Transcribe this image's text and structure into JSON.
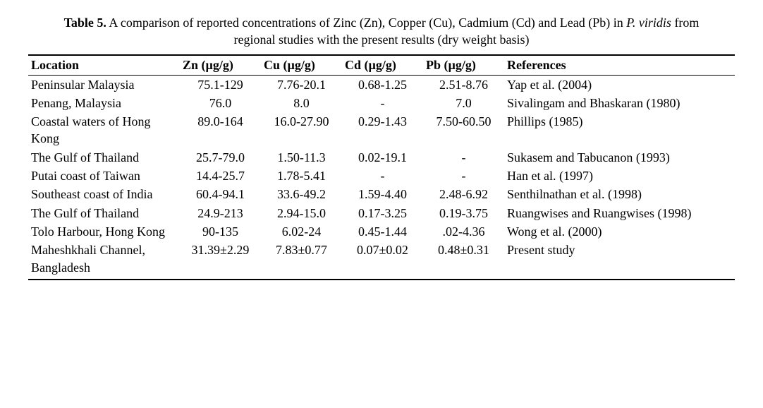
{
  "caption": {
    "label": "Table 5.",
    "text_before": " A comparison of reported concentrations of Zinc (Zn), Copper (Cu), Cadmium (Cd) and Lead (Pb) in ",
    "italic": "P. viridis",
    "text_after": " from regional studies with the present results (dry weight basis)"
  },
  "headers": {
    "location": "Location",
    "zn": "Zn (µg/g)",
    "cu": "Cu (µg/g)",
    "cd": "Cd (µg/g)",
    "pb": "Pb (µg/g)",
    "ref": "References"
  },
  "rows": [
    {
      "location": "Peninsular Malaysia",
      "zn": "75.1-129",
      "cu": "7.76-20.1",
      "cd": "0.68-1.25",
      "pb": "2.51-8.76",
      "ref": "Yap et al. (2004)"
    },
    {
      "location": "Penang, Malaysia",
      "zn": "76.0",
      "cu": "8.0",
      "cd": "-",
      "pb": "7.0",
      "ref": "Sivalingam and Bhaskaran (1980)"
    },
    {
      "location": "Coastal waters of Hong Kong",
      "zn": "89.0-164",
      "cu": "16.0-27.90",
      "cd": "0.29-1.43",
      "pb": "7.50-60.50",
      "ref": "Phillips (1985)"
    },
    {
      "location": "The Gulf of Thailand",
      "zn": "25.7-79.0",
      "cu": "1.50-11.3",
      "cd": "0.02-19.1",
      "pb": "-",
      "ref": "Sukasem and Tabucanon (1993)"
    },
    {
      "location": "Putai coast of Taiwan",
      "zn": "14.4-25.7",
      "cu": "1.78-5.41",
      "cd": "-",
      "pb": "-",
      "ref": "Han et al. (1997)"
    },
    {
      "location": "Southeast coast of India",
      "zn": "60.4-94.1",
      "cu": "33.6-49.2",
      "cd": "1.59-4.40",
      "pb": "2.48-6.92",
      "ref": "Senthilnathan et al. (1998)"
    },
    {
      "location": "The Gulf of Thailand",
      "zn": "24.9-213",
      "cu": "2.94-15.0",
      "cd": "0.17-3.25",
      "pb": "0.19-3.75",
      "ref": "Ruangwises and Ruangwises (1998)"
    },
    {
      "location": "Tolo Harbour, Hong Kong",
      "zn": "90-135",
      "cu": "6.02-24",
      "cd": "0.45-1.44",
      "pb": ".02-4.36",
      "ref": "Wong et al. (2000)"
    },
    {
      "location": "Maheshkhali Channel, Bangladesh",
      "zn": "31.39±2.29",
      "cu": "7.83±0.77",
      "cd": "0.07±0.02",
      "pb": "0.48±0.31",
      "ref": "Present study"
    }
  ]
}
